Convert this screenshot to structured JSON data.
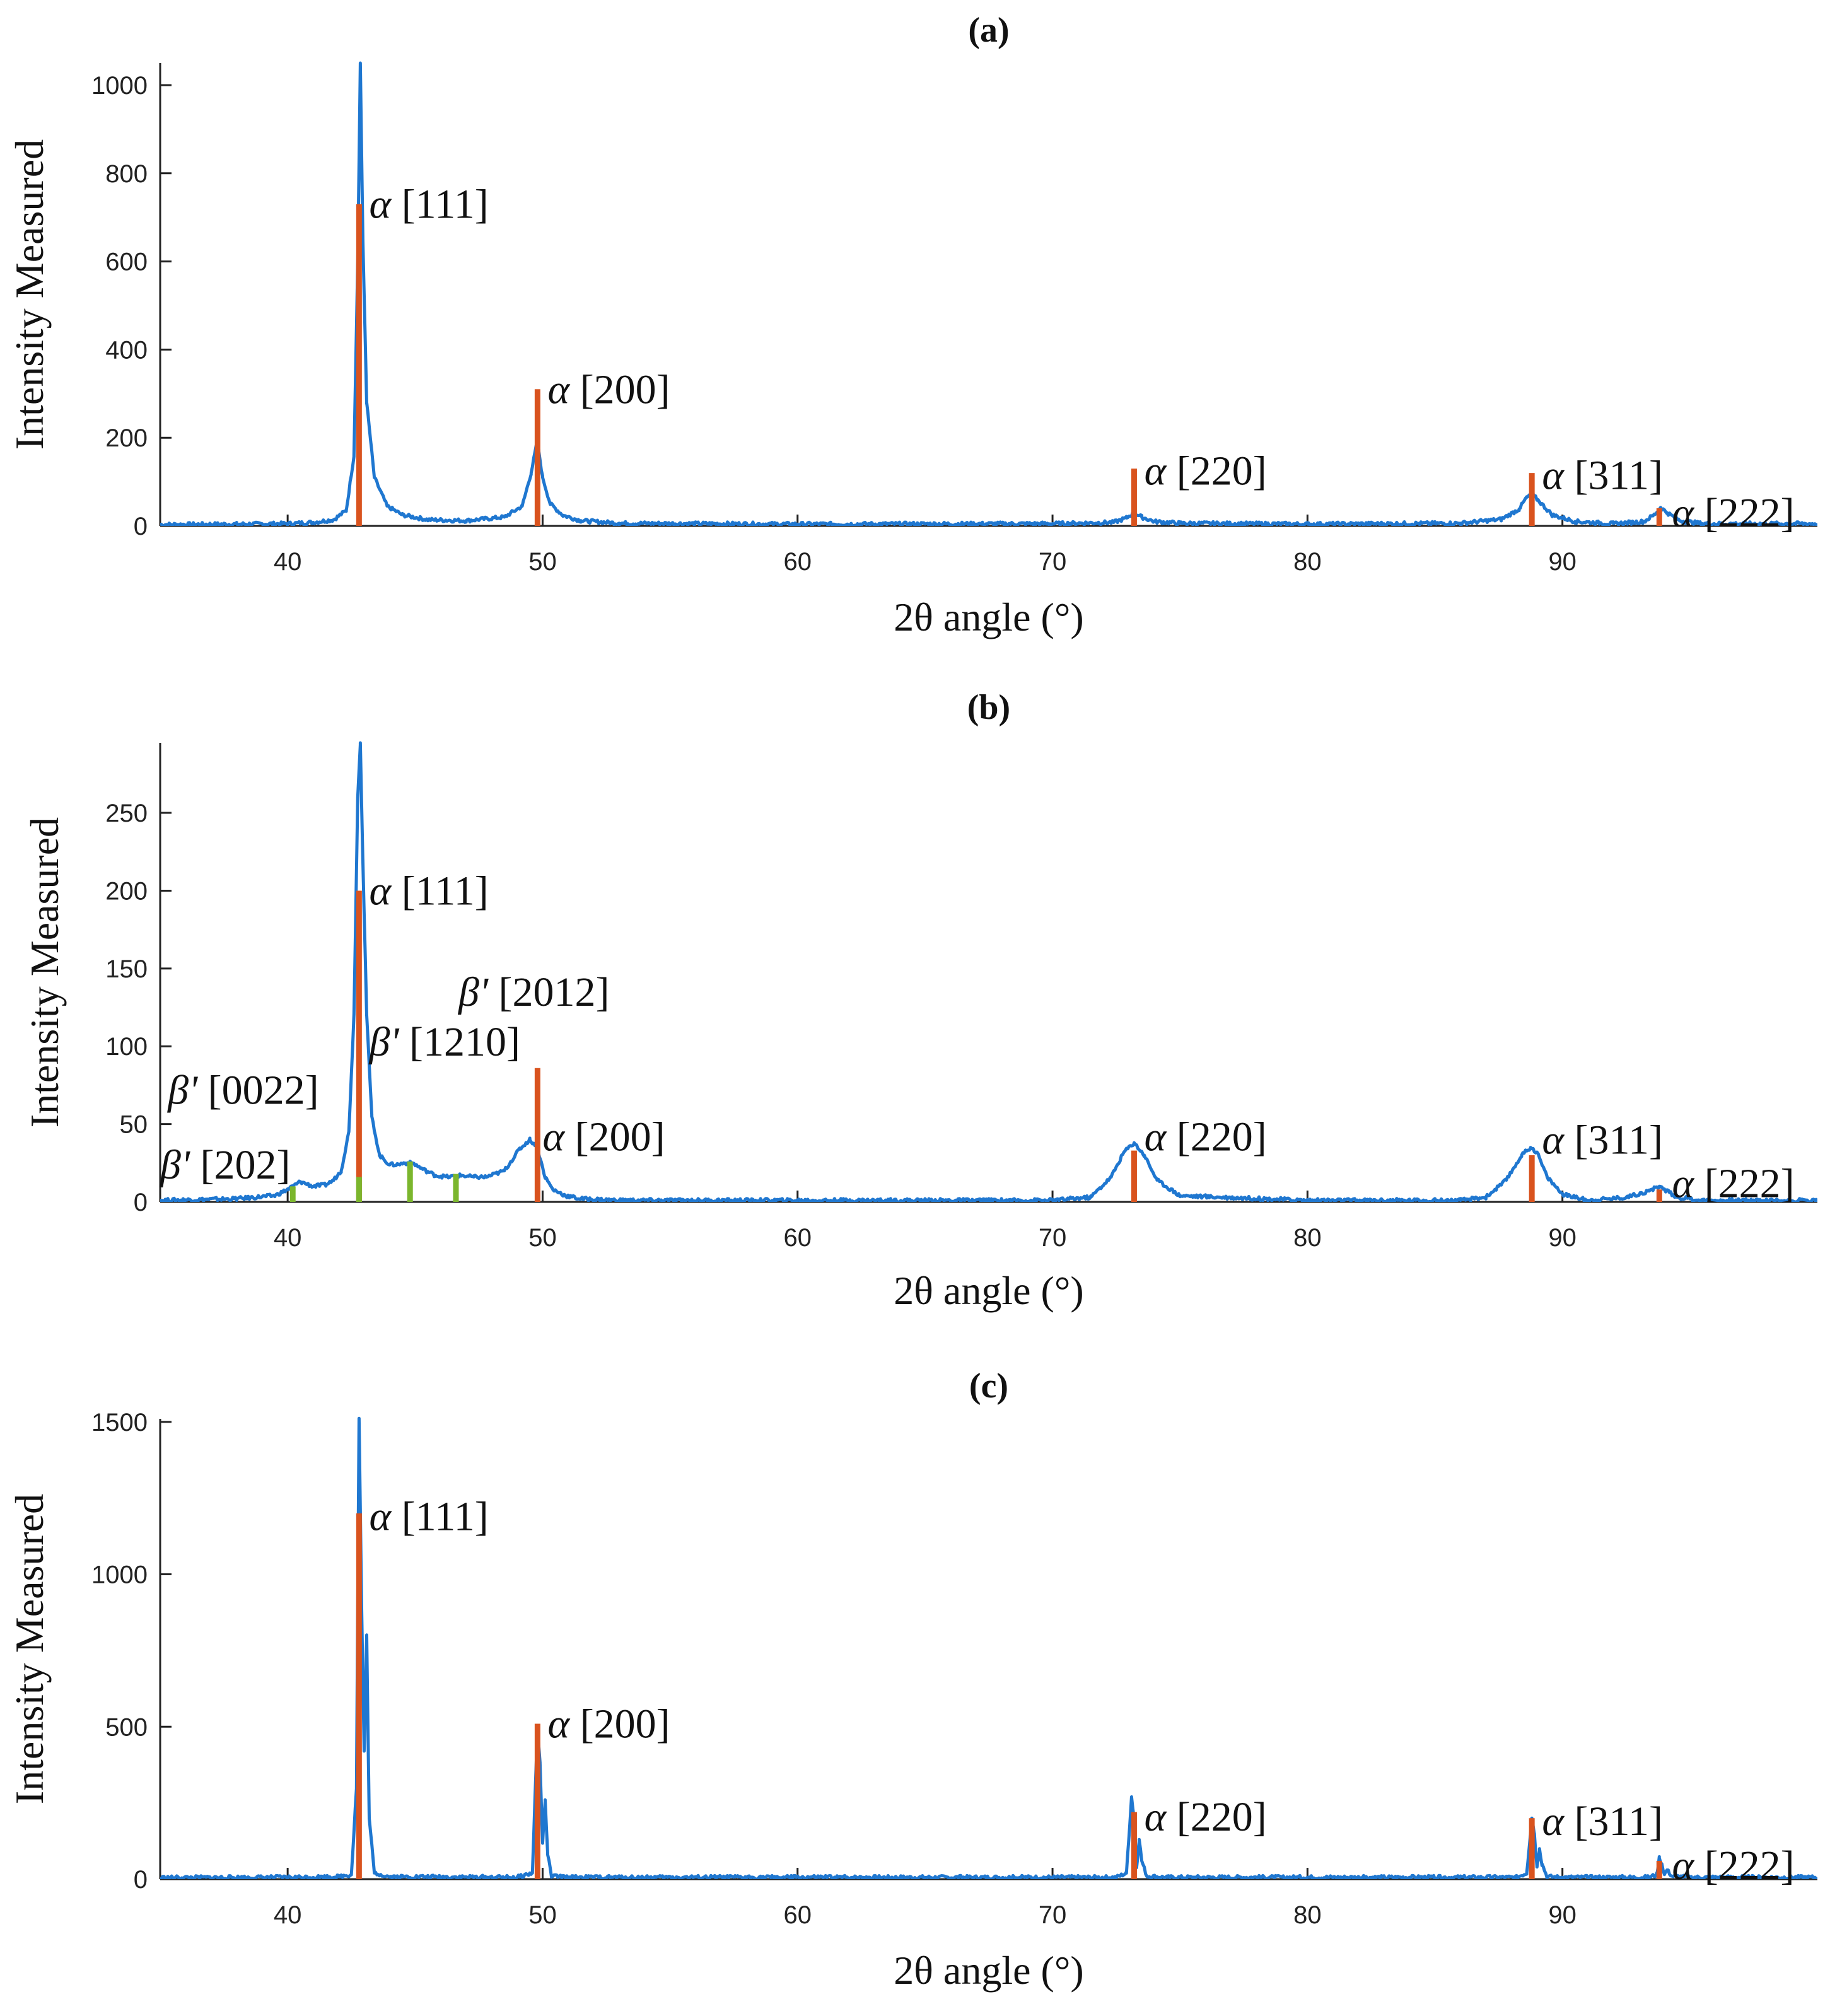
{
  "chart_data": [
    {
      "type": "line",
      "title": "(a)",
      "xlabel": "2θ angle (°)",
      "ylabel": "Intensity Measured",
      "xlim": [
        35,
        100
      ],
      "ylim": [
        0,
        1050
      ],
      "xticks": [
        40,
        50,
        60,
        70,
        80,
        90
      ],
      "yticks": [
        0,
        200,
        400,
        600,
        800,
        1000
      ],
      "grid": false,
      "series": [
        {
          "name": "measured",
          "color": "#1f77d0",
          "x": [
            35,
            38,
            40,
            41,
            41.8,
            42.3,
            42.6,
            42.75,
            42.85,
            42.95,
            43.1,
            43.4,
            43.9,
            44.5,
            45.5,
            47,
            48.5,
            49.2,
            49.55,
            49.75,
            49.85,
            50,
            50.3,
            50.8,
            51.5,
            53,
            60,
            70,
            72.4,
            72.9,
            73.2,
            73.5,
            74,
            75,
            80,
            86,
            87.6,
            88.3,
            88.6,
            88.85,
            89.1,
            89.6,
            90.5,
            92,
            93.2,
            93.6,
            93.85,
            94.1,
            94.6,
            95.5,
            100
          ],
          "y": [
            3,
            4,
            5,
            8,
            14,
            35,
            160,
            600,
            1050,
            650,
            280,
            110,
            45,
            25,
            14,
            12,
            20,
            45,
            120,
            180,
            170,
            110,
            50,
            24,
            12,
            6,
            4,
            5,
            8,
            18,
            30,
            20,
            10,
            6,
            4,
            6,
            15,
            38,
            65,
            70,
            55,
            25,
            10,
            5,
            10,
            25,
            42,
            30,
            12,
            5,
            5
          ]
        }
      ],
      "reference_lines": [
        {
          "name": "alpha",
          "color": "#d9531e",
          "x": [
            42.8,
            49.8,
            73.2,
            88.8,
            93.8
          ],
          "height": [
            730,
            310,
            130,
            120,
            40
          ]
        }
      ],
      "peak_labels": [
        {
          "text": "α [111]",
          "x": 43.2,
          "y": 730
        },
        {
          "text": "α [200]",
          "x": 50.2,
          "y": 310
        },
        {
          "text": "α [220]",
          "x": 73.6,
          "y": 125
        },
        {
          "text": "α [311]",
          "x": 89.2,
          "y": 115
        },
        {
          "text": "α [222]",
          "x": 94.3,
          "y": 30
        }
      ]
    },
    {
      "type": "line",
      "title": "(b)",
      "xlabel": "2θ angle (°)",
      "ylabel": "Intensity Measured",
      "xlim": [
        35,
        100
      ],
      "ylim": [
        0,
        295
      ],
      "xticks": [
        40,
        50,
        60,
        70,
        80,
        90
      ],
      "yticks": [
        0,
        50,
        100,
        150,
        200,
        250
      ],
      "grid": false,
      "series": [
        {
          "name": "measured",
          "color": "#1f77d0",
          "x": [
            35,
            38,
            39.5,
            40,
            40.5,
            41,
            41.5,
            41.8,
            42.1,
            42.4,
            42.6,
            42.75,
            42.85,
            42.95,
            43.1,
            43.3,
            43.6,
            44,
            44.3,
            44.6,
            44.9,
            45.3,
            45.8,
            46.3,
            46.8,
            47.3,
            47.8,
            48.5,
            49.1,
            49.5,
            49.75,
            49.9,
            50.1,
            50.4,
            50.9,
            51.5,
            53,
            60,
            70,
            71.5,
            72.3,
            72.8,
            73.2,
            73.6,
            74.1,
            75,
            80,
            86,
            87,
            87.8,
            88.4,
            88.75,
            89,
            89.4,
            90,
            91,
            92.5,
            93.4,
            93.8,
            94.1,
            94.5,
            95.5,
            100
          ],
          "y": [
            1,
            2,
            4,
            8,
            13,
            10,
            11,
            14,
            20,
            45,
            120,
            260,
            295,
            220,
            120,
            55,
            30,
            24,
            24,
            25,
            25,
            21,
            17,
            16,
            17,
            16,
            16,
            20,
            34,
            40,
            36,
            28,
            16,
            8,
            4,
            2,
            1,
            1,
            1,
            3,
            16,
            32,
            38,
            30,
            14,
            4,
            1,
            1,
            3,
            14,
            30,
            35,
            32,
            16,
            5,
            1,
            3,
            7,
            10,
            7,
            3,
            1,
            1
          ]
        }
      ],
      "reference_lines": [
        {
          "name": "alpha",
          "color": "#d9531e",
          "x": [
            42.8,
            49.8,
            73.2,
            88.8,
            93.8
          ],
          "height": [
            200,
            86,
            33,
            30,
            8
          ]
        },
        {
          "name": "beta-prime",
          "color": "#7bb62d",
          "x": [
            40.2,
            42.8,
            44.8,
            46.6
          ],
          "height": [
            10,
            16,
            26,
            18
          ]
        }
      ],
      "peak_labels": [
        {
          "text": "α [111]",
          "x": 43.2,
          "y": 200
        },
        {
          "text": "β' [2012]",
          "x": 46.7,
          "y": 135
        },
        {
          "text": "β' [1210]",
          "x": 43.2,
          "y": 103
        },
        {
          "text": "β' [0022]",
          "x": 35.3,
          "y": 72
        },
        {
          "text": "β' [202]",
          "x": 35.0,
          "y": 24
        },
        {
          "text": "α [200]",
          "x": 50.0,
          "y": 42
        },
        {
          "text": "α [220]",
          "x": 73.6,
          "y": 42
        },
        {
          "text": "α [311]",
          "x": 89.2,
          "y": 40
        },
        {
          "text": "α [222]",
          "x": 94.3,
          "y": 12
        }
      ]
    },
    {
      "type": "line",
      "title": "(c)",
      "xlabel": "2θ angle (°)",
      "ylabel": "Intensity Measured",
      "xlim": [
        35,
        100
      ],
      "ylim": [
        0,
        1510
      ],
      "xticks": [
        40,
        50,
        60,
        70,
        80,
        90
      ],
      "yticks": [
        0,
        500,
        1000,
        1500
      ],
      "grid": false,
      "series": [
        {
          "name": "measured",
          "color": "#1f77d0",
          "x": [
            35,
            40,
            42,
            42.5,
            42.7,
            42.8,
            42.9,
            43.0,
            43.1,
            43.2,
            43.4,
            44,
            49,
            49.6,
            49.8,
            49.9,
            50.0,
            50.1,
            50.2,
            50.35,
            51,
            72.5,
            72.9,
            73.1,
            73.2,
            73.3,
            73.4,
            73.5,
            73.7,
            74.5,
            88.2,
            88.6,
            88.8,
            88.9,
            89.0,
            89.1,
            89.2,
            89.4,
            90,
            93.4,
            93.7,
            93.8,
            93.9,
            94.0,
            94.1,
            94.3,
            95,
            100
          ],
          "y": [
            5,
            6,
            8,
            15,
            300,
            1510,
            900,
            420,
            800,
            200,
            20,
            8,
            6,
            20,
            500,
            380,
            120,
            260,
            80,
            10,
            6,
            6,
            20,
            270,
            200,
            40,
            130,
            60,
            10,
            6,
            6,
            20,
            200,
            150,
            40,
            100,
            50,
            8,
            6,
            6,
            15,
            70,
            50,
            15,
            30,
            10,
            6,
            6
          ]
        }
      ],
      "reference_lines": [
        {
          "name": "alpha",
          "color": "#d9531e",
          "x": [
            42.8,
            49.8,
            73.2,
            88.8,
            93.8
          ],
          "height": [
            1200,
            510,
            220,
            200,
            60
          ]
        }
      ],
      "peak_labels": [
        {
          "text": "α [111]",
          "x": 43.2,
          "y": 1190
        },
        {
          "text": "α [200]",
          "x": 50.2,
          "y": 510
        },
        {
          "text": "α [220]",
          "x": 73.6,
          "y": 205
        },
        {
          "text": "α [311]",
          "x": 89.2,
          "y": 190
        },
        {
          "text": "α [222]",
          "x": 94.3,
          "y": 45
        }
      ]
    }
  ]
}
